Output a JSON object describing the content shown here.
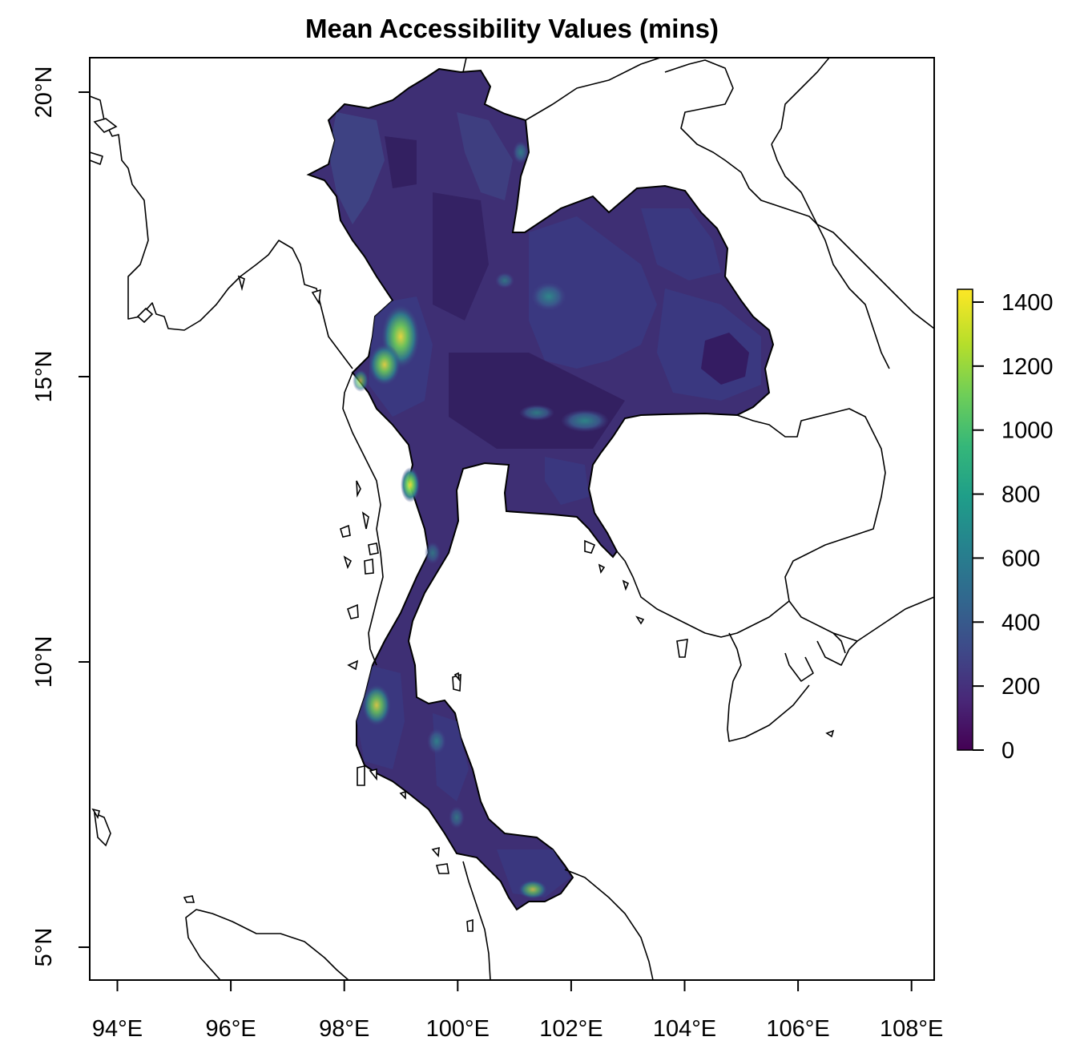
{
  "map": {
    "title": "Mean Accessibility Values (mins)",
    "country": "Thailand",
    "x_ticks": [
      "94°E",
      "96°E",
      "98°E",
      "100°E",
      "102°E",
      "104°E",
      "106°E",
      "108°E"
    ],
    "y_ticks": [
      "5°N",
      "10°N",
      "15°N",
      "20°N"
    ],
    "lon_range": [
      93.5,
      108.5
    ],
    "lat_range": [
      4.4,
      20.6
    ],
    "colors": {
      "base": "#3b1e63",
      "mid": "#3f3e85",
      "high": "#2f6d8e",
      "peak": "#f5e53a",
      "outline": "#000000"
    },
    "legend": {
      "ticks": [
        "0",
        "200",
        "400",
        "600",
        "800",
        "1000",
        "1200",
        "1400"
      ],
      "min": 0,
      "max": 1440,
      "colors": [
        "#440154",
        "#482878",
        "#3e4a89",
        "#31688e",
        "#26828e",
        "#1f9e89",
        "#35b779",
        "#6ece58",
        "#b5de2b",
        "#fde725"
      ]
    }
  }
}
